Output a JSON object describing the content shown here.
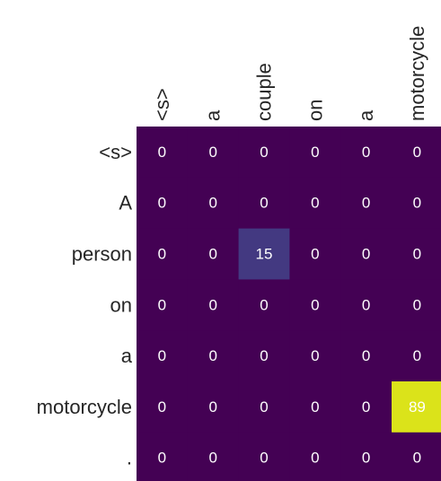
{
  "chart_data": {
    "type": "heatmap",
    "title": "",
    "xlabel": "",
    "ylabel": "",
    "x_labels": [
      "<s>",
      "a",
      "couple",
      "on",
      "a",
      "motorcycle"
    ],
    "y_labels": [
      "<s>",
      "A",
      "person",
      "on",
      "a",
      "motorcycle",
      "."
    ],
    "values": [
      [
        0,
        0,
        0,
        0,
        0,
        0
      ],
      [
        0,
        0,
        0,
        0,
        0,
        0
      ],
      [
        0,
        0,
        15,
        0,
        0,
        0
      ],
      [
        0,
        0,
        0,
        0,
        0,
        0
      ],
      [
        0,
        0,
        0,
        0,
        0,
        0
      ],
      [
        0,
        0,
        0,
        0,
        0,
        89
      ],
      [
        0,
        0,
        0,
        0,
        0,
        0
      ]
    ],
    "value_range": [
      0,
      100
    ],
    "colormap": "viridis",
    "colors": {
      "low": "#440154",
      "text_on_dark": "#ffffff",
      "text_on_light": "#ffffff",
      "label_text": "#262626"
    }
  }
}
